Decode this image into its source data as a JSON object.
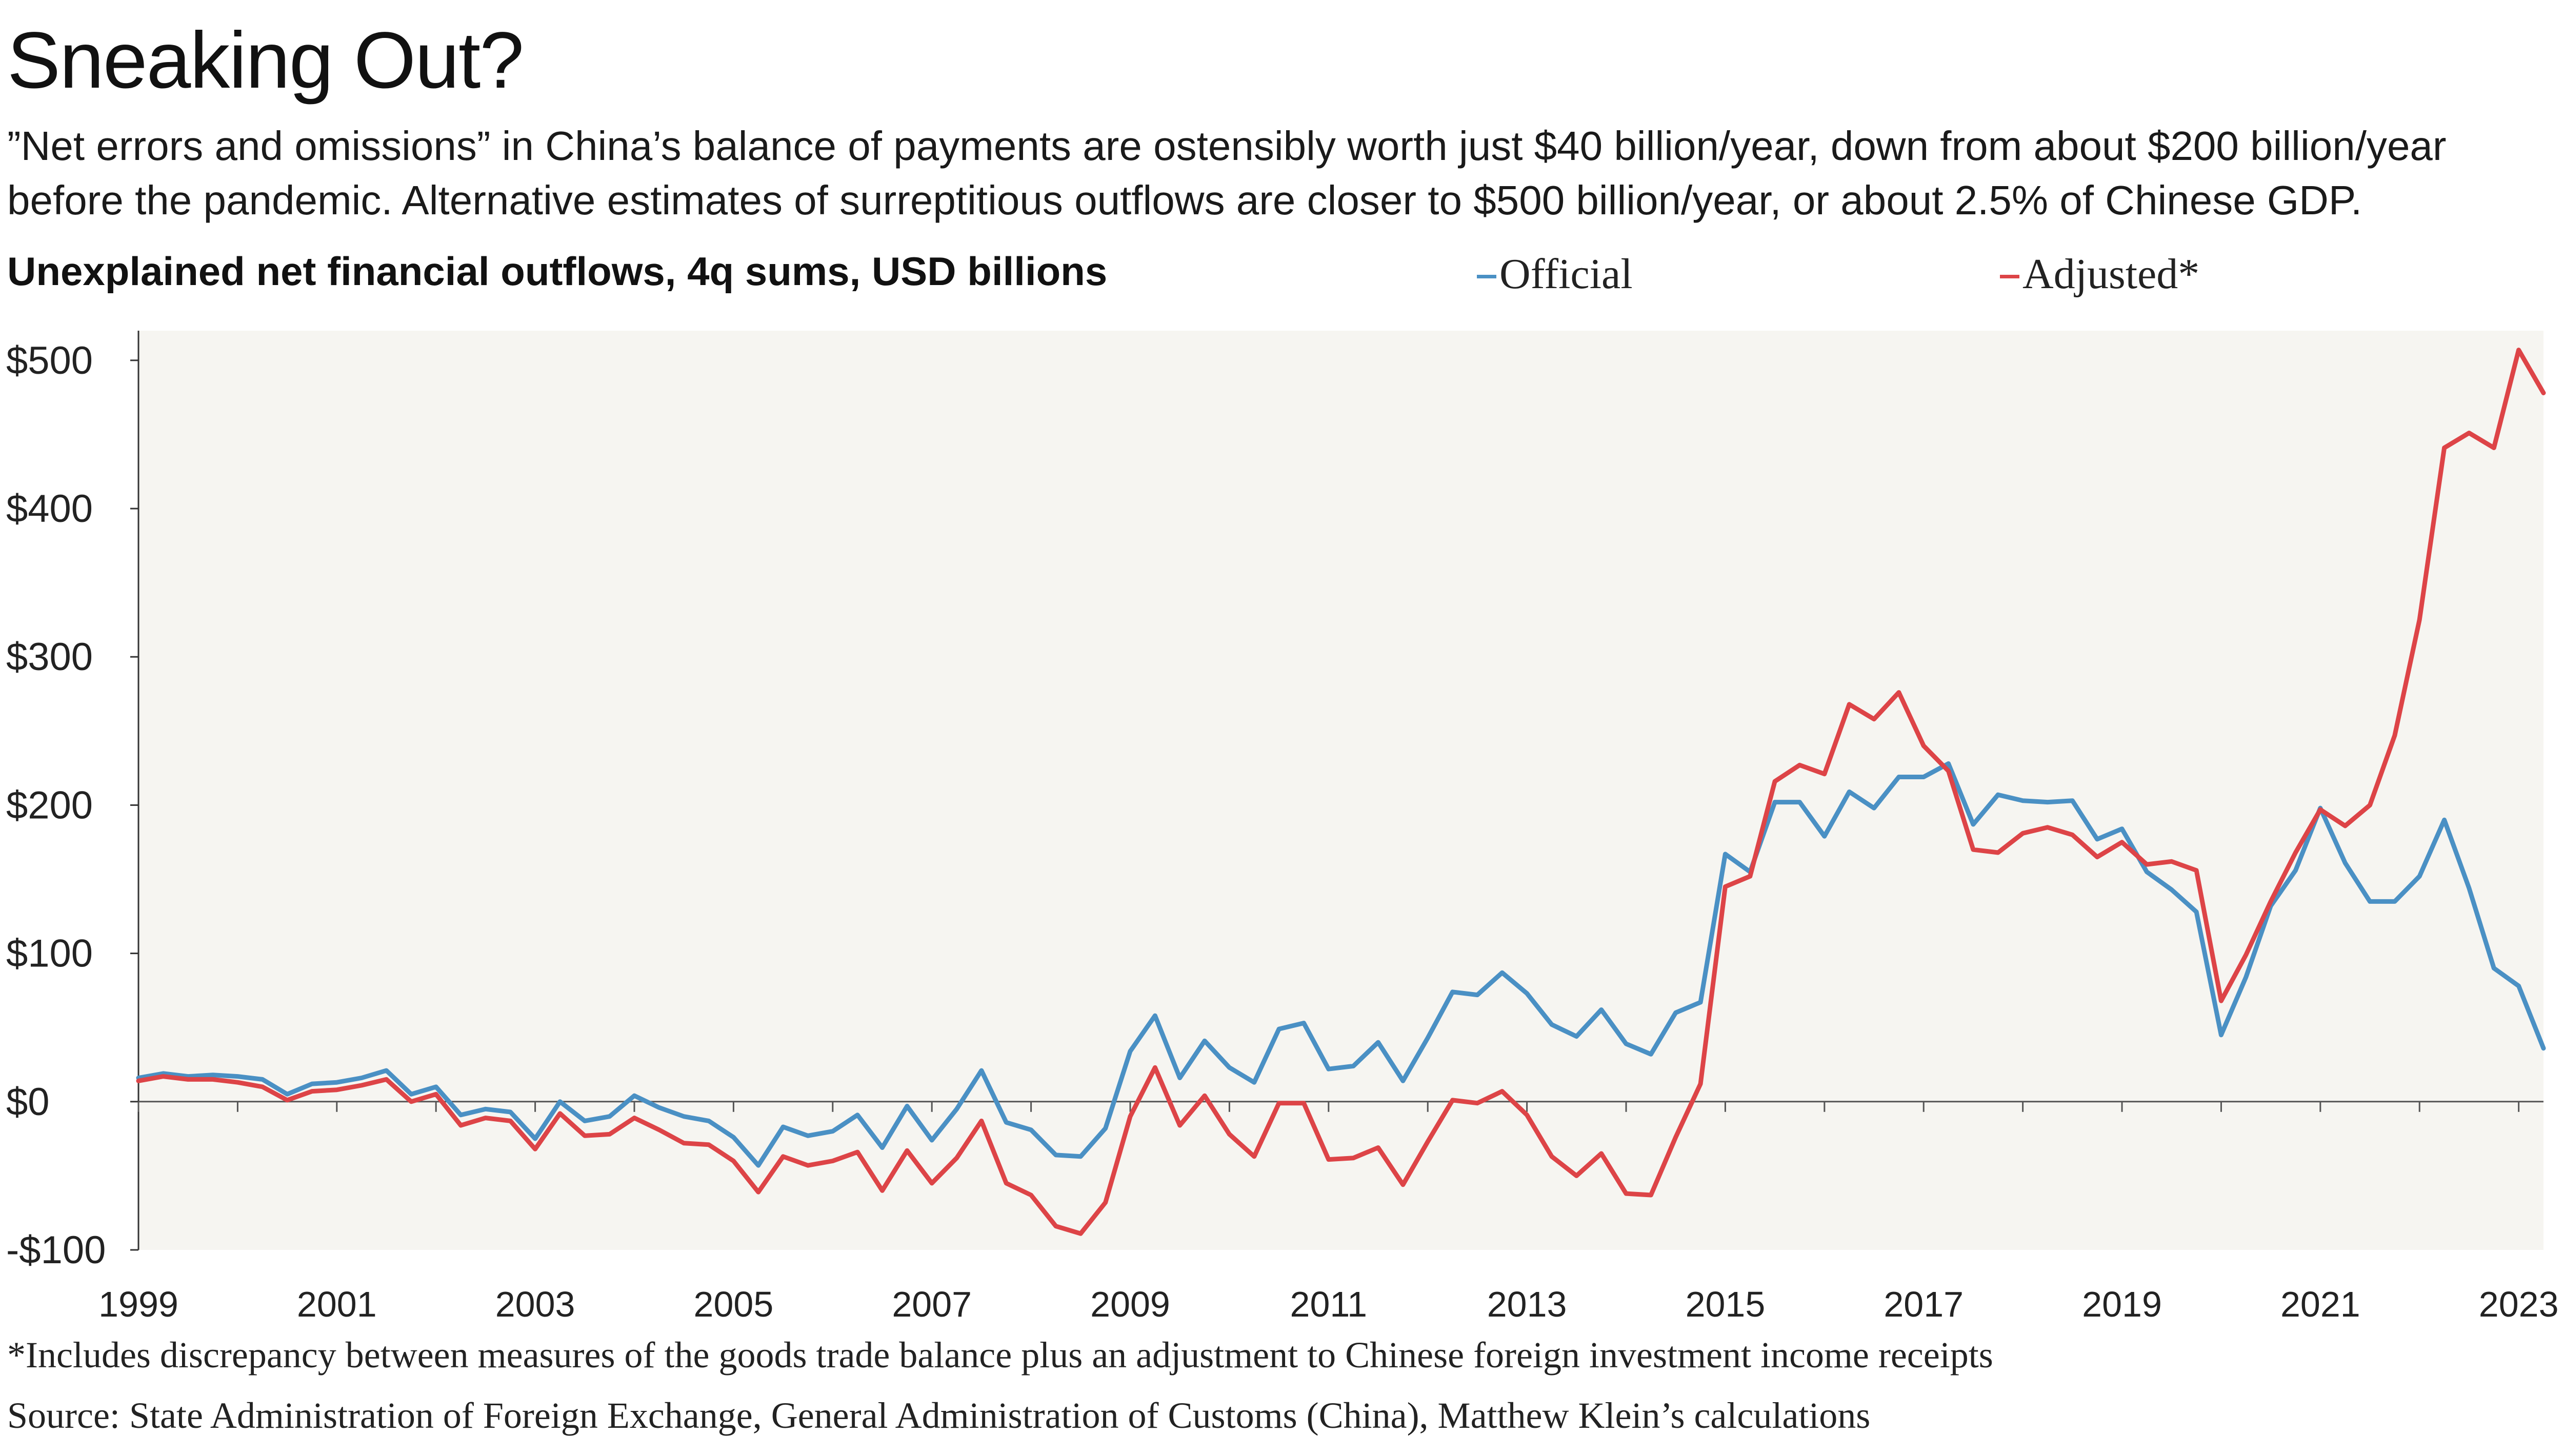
{
  "title": "Sneaking Out?",
  "subtitle": "”Net errors and omissions” in China’s balance of payments are ostensibly worth just $40 billion/year, down from about $200 billion/year before the pandemic. Alternative estimates of surreptitious outflows are closer to $500 billion/year, or about 2.5% of Chinese GDP.",
  "chart_heading": "Unexplained net financial outflows, 4q sums, USD billions",
  "legend": {
    "official": "Official",
    "adjusted": "Adjusted*"
  },
  "colors": {
    "official": "#4a90c4",
    "adjusted": "#dd4447",
    "plot_bg": "#f6f5f1"
  },
  "footnote": "*Includes discrepancy between measures of the goods trade balance plus an adjustment to Chinese foreign investment income receipts",
  "source": "Source: State Administration of Foreign Exchange, General Administration of Customs (China), Matthew Klein’s calculations",
  "chart_data": {
    "type": "line",
    "title": "Unexplained net financial outflows, 4q sums, USD billions",
    "x_label_years": [
      "1999",
      "2001",
      "2003",
      "2005",
      "2007",
      "2009",
      "2011",
      "2013",
      "2015",
      "2017",
      "2019",
      "2021",
      "2023"
    ],
    "y_ticks": [
      {
        "value": 500,
        "label": "$500"
      },
      {
        "value": 400,
        "label": "$400"
      },
      {
        "value": 300,
        "label": "$300"
      },
      {
        "value": 200,
        "label": "$200"
      },
      {
        "value": 100,
        "label": "$100"
      },
      {
        "value": 0,
        "label": "$0"
      },
      {
        "value": -100,
        "label": "-$100"
      }
    ],
    "ylim": [
      -100,
      520
    ],
    "x_start_year": 1999.0,
    "x_step_years": 0.25,
    "series": [
      {
        "name": "Official",
        "values": [
          16,
          19,
          17,
          18,
          17,
          15,
          5,
          12,
          13,
          16,
          21,
          5,
          10,
          -9,
          -5,
          -7,
          -25,
          0,
          -13,
          -10,
          4,
          -4,
          -10,
          -13,
          -24,
          -43,
          -17,
          -23,
          -20,
          -9,
          -31,
          -3,
          -26,
          -5,
          21,
          -14,
          -19,
          -36,
          -37,
          -18,
          34,
          58,
          16,
          41,
          23,
          13,
          49,
          53,
          22,
          24,
          40,
          14,
          43,
          74,
          72,
          87,
          73,
          52,
          44,
          62,
          39,
          32,
          60,
          67,
          167,
          155,
          202,
          202,
          179,
          209,
          198,
          219,
          219,
          228,
          187,
          207,
          203,
          202,
          203,
          177,
          184,
          155,
          143,
          128,
          45,
          84,
          132,
          156,
          198,
          161,
          135,
          135,
          152,
          190,
          144,
          90,
          78,
          36
        ]
      },
      {
        "name": "Adjusted*",
        "values": [
          14,
          17,
          15,
          15,
          13,
          10,
          1,
          7,
          8,
          11,
          15,
          0,
          5,
          -16,
          -11,
          -13,
          -32,
          -8,
          -23,
          -22,
          -11,
          -19,
          -28,
          -29,
          -40,
          -61,
          -37,
          -43,
          -40,
          -34,
          -60,
          -33,
          -55,
          -38,
          -13,
          -55,
          -63,
          -84,
          -89,
          -68,
          -10,
          23,
          -16,
          4,
          -22,
          -37,
          -1,
          -1,
          -39,
          -38,
          -31,
          -56,
          -27,
          1,
          -1,
          7,
          -9,
          -37,
          -50,
          -35,
          -62,
          -63,
          -24,
          12,
          145,
          152,
          216,
          227,
          221,
          268,
          258,
          276,
          240,
          223,
          170,
          168,
          181,
          185,
          180,
          165,
          175,
          160,
          162,
          156,
          68,
          99,
          135,
          168,
          197,
          186,
          200,
          247,
          325,
          441,
          451,
          441,
          507,
          478
        ]
      }
    ]
  }
}
